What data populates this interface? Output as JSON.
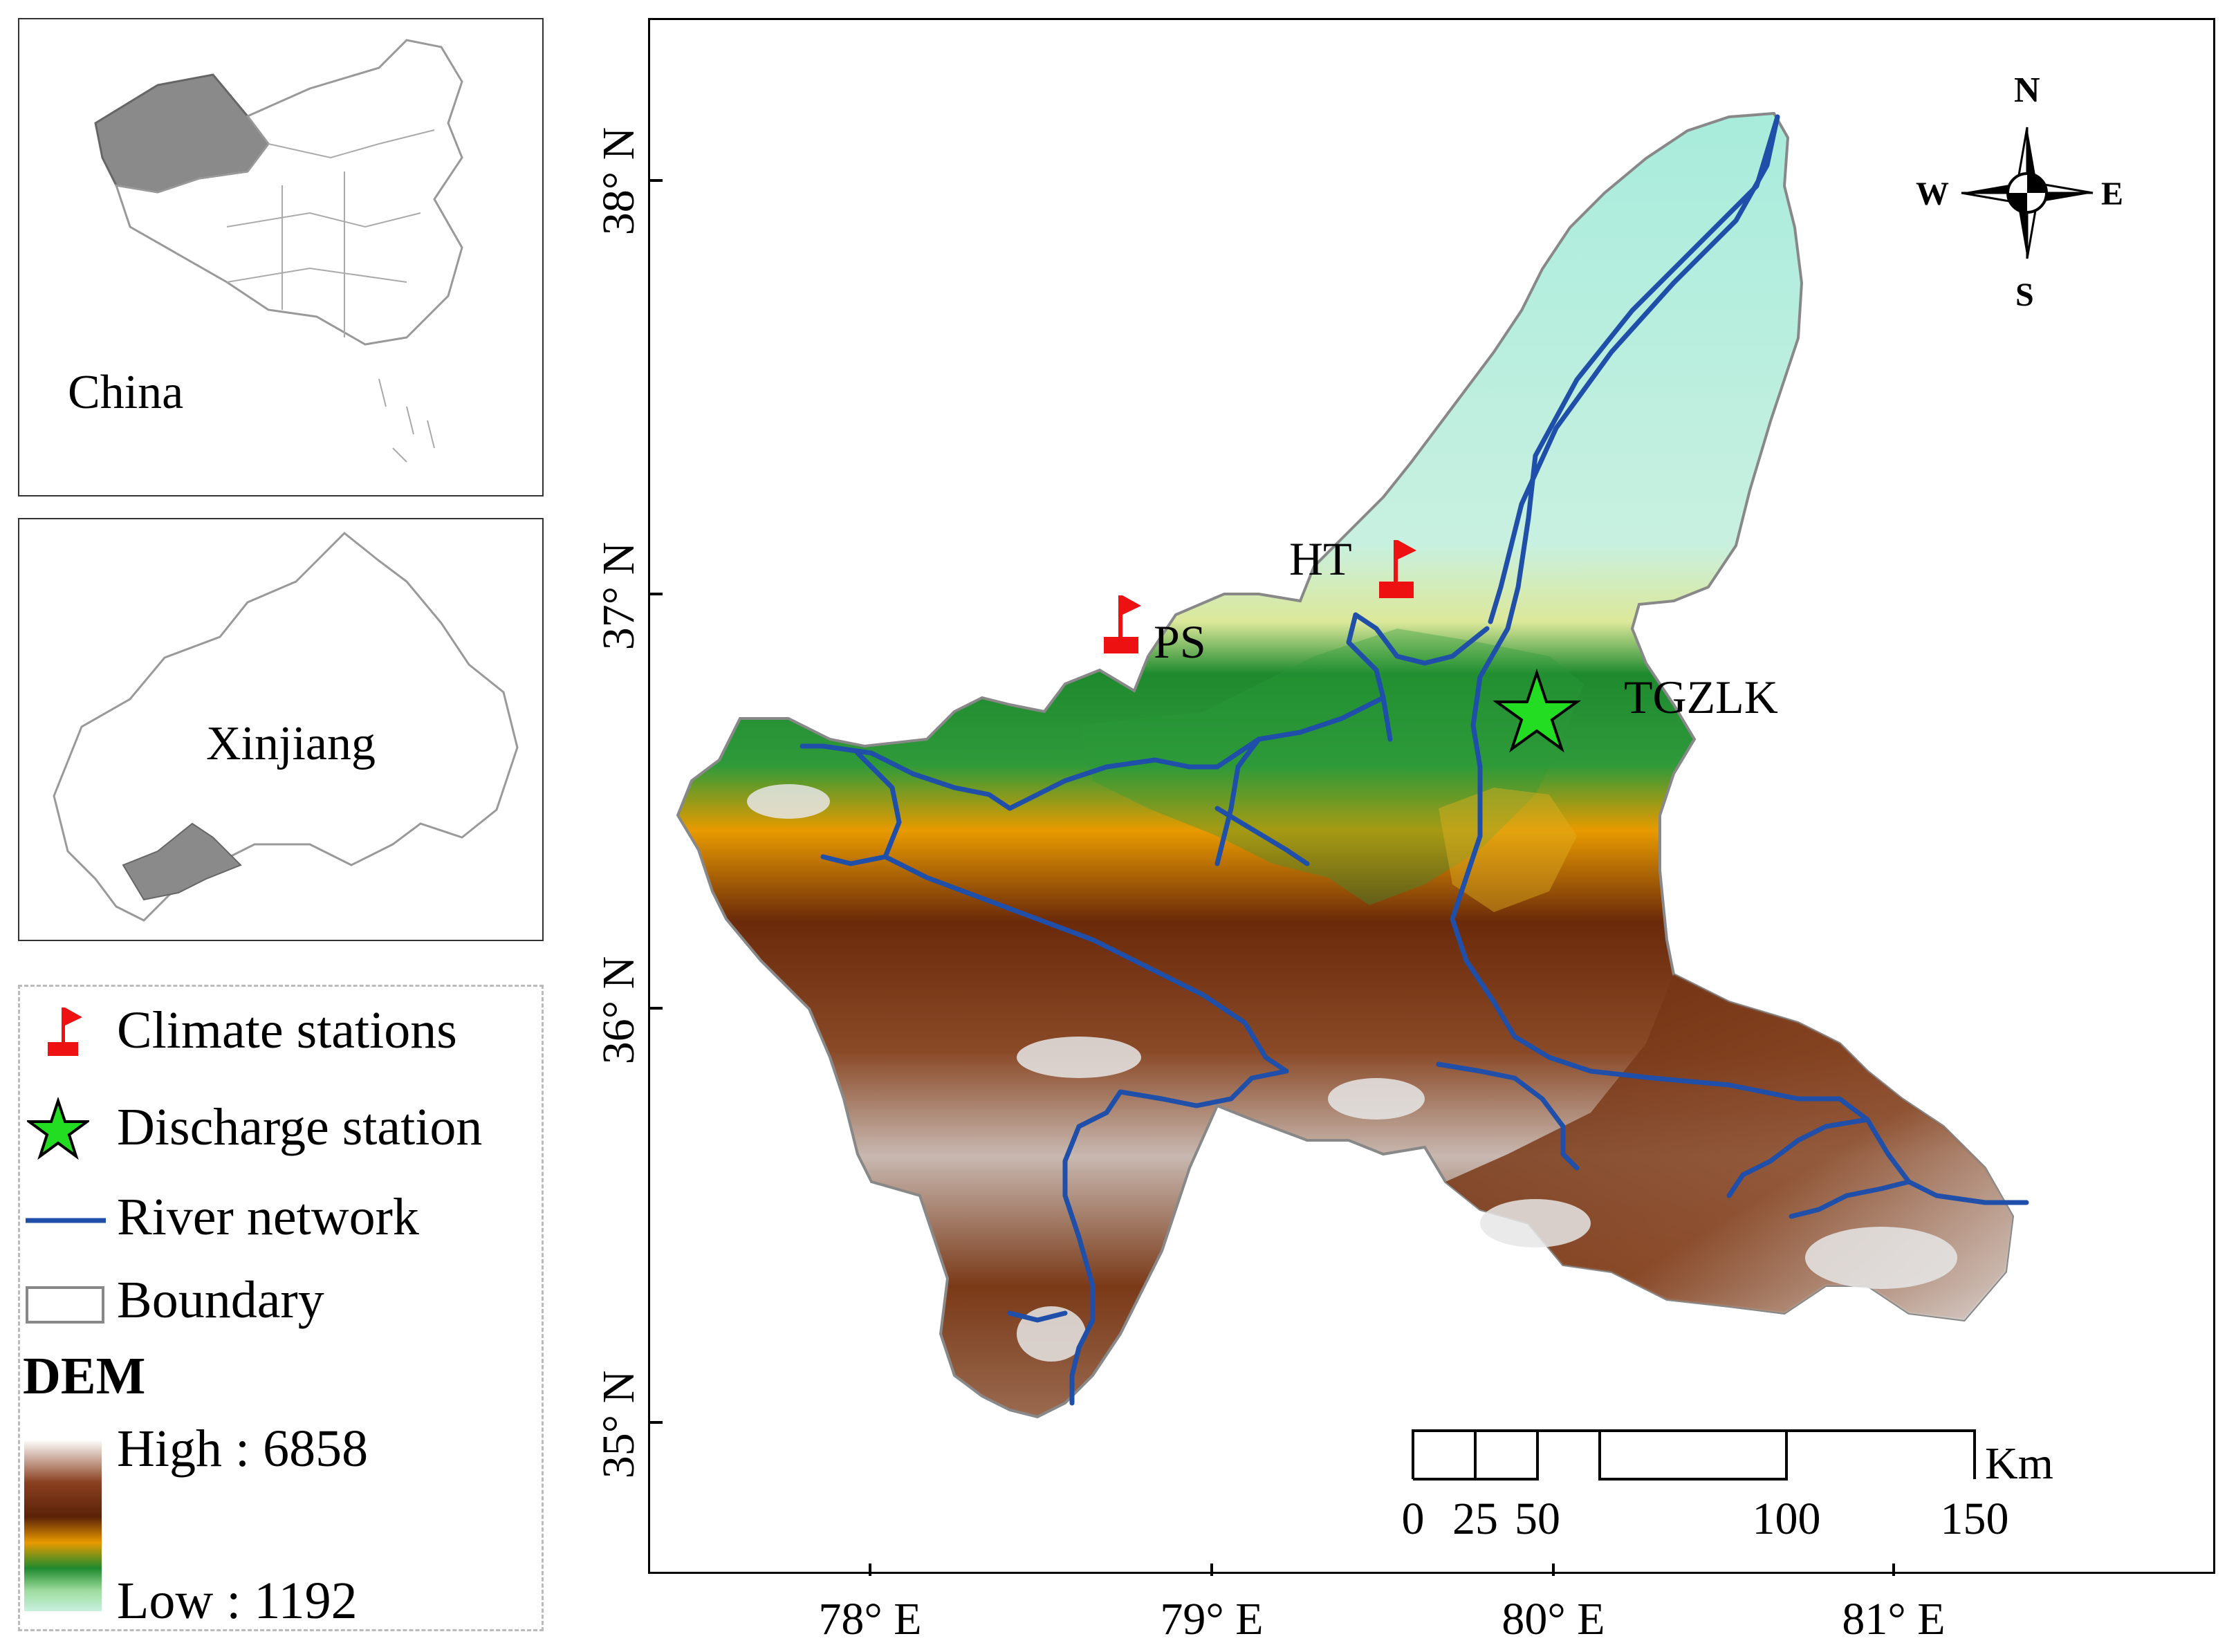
{
  "insets": {
    "china_label": "China",
    "xinjiang_label": "Xinjiang"
  },
  "legend": {
    "climate_stations": "Climate stations",
    "discharge_station": "Discharge station",
    "river_network": "River network",
    "boundary": "Boundary",
    "dem_title": "DEM",
    "dem_high": "High : 6858",
    "dem_low": "Low : 1192"
  },
  "map": {
    "lat_labels": [
      "38° N",
      "37° N",
      "36° N",
      "35° N"
    ],
    "lon_labels": [
      "78° E",
      "79° E",
      "80° E",
      "81° E"
    ],
    "stations": {
      "ps": "PS",
      "ht": "HT",
      "tgzlk": "TGZLK"
    },
    "compass": {
      "n": "N",
      "s": "S",
      "e": "E",
      "w": "W"
    },
    "scale": {
      "ticks": [
        "0",
        "25",
        "50",
        "100",
        "150"
      ],
      "unit": "Km"
    }
  },
  "colors": {
    "river": "#1f4fa8",
    "flag": "#ee1111",
    "star": "#22dd22",
    "dem_high": "#ffffff",
    "dem_mid_high": "#6b2a0a",
    "dem_mid": "#e89a00",
    "dem_mid_low": "#1e8a2e",
    "dem_low": "#c8f0e0",
    "inset_fill": "#8a8a8a"
  },
  "icons": [
    "flag-icon",
    "star-icon",
    "compass-rose-icon"
  ]
}
